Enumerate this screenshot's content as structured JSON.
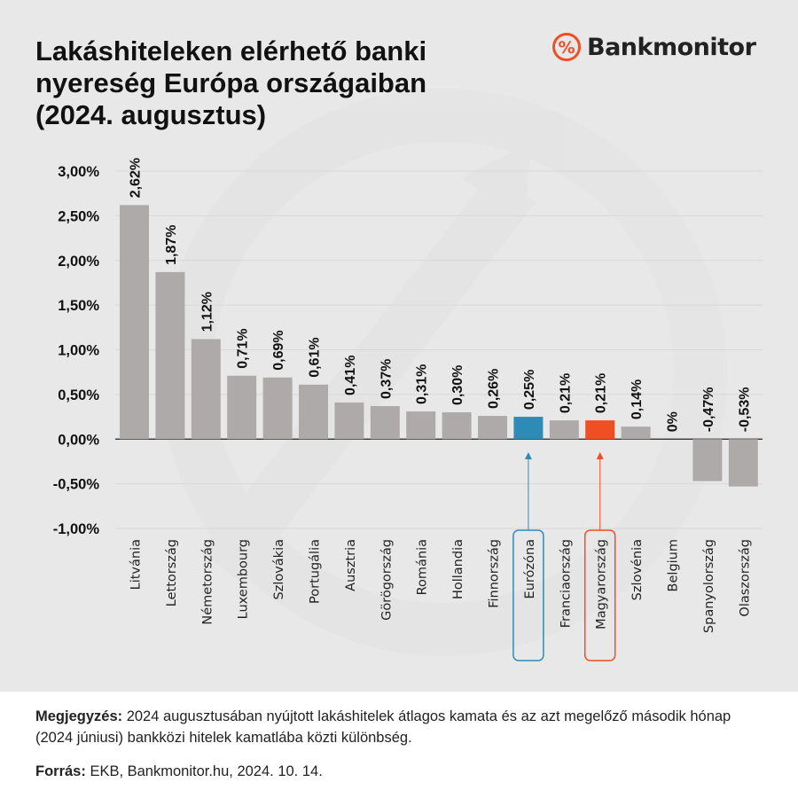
{
  "title": "Lakáshiteleken elérhető banki\nnyereség Európa országaiban\n(2024. augusztus)",
  "logo": {
    "text": "Bankmonitor",
    "icon": "percent-circle-icon",
    "color": "#f04e23"
  },
  "colors": {
    "bar": "#aeaaaa",
    "eurozone": "#2e8bb5",
    "hungary": "#f04e23",
    "background": "#e9e8e8"
  },
  "chart_data": {
    "type": "bar",
    "title": "Lakáshiteleken elérhető banki nyereség Európa országaiban (2024. augusztus)",
    "categories": [
      "Litvánia",
      "Lettország",
      "Németország",
      "Luxembourg",
      "Szlovákia",
      "Portugália",
      "Ausztria",
      "Görögország",
      "Románia",
      "Hollandia",
      "Finnország",
      "Eurózóna",
      "Franciaország",
      "Magyarország",
      "Szlovénia",
      "Belgium",
      "Spanyolország",
      "Olaszország"
    ],
    "values": [
      2.62,
      1.87,
      1.12,
      0.71,
      0.69,
      0.61,
      0.41,
      0.37,
      0.31,
      0.3,
      0.26,
      0.25,
      0.21,
      0.21,
      0.14,
      0,
      -0.47,
      -0.53
    ],
    "data_labels": [
      "2,62%",
      "1,87%",
      "1,12%",
      "0,71%",
      "0,69%",
      "0,61%",
      "0,41%",
      "0,37%",
      "0,31%",
      "0,30%",
      "0,26%",
      "0,25%",
      "0,21%",
      "0,21%",
      "0,14%",
      "0%",
      "-0,47%",
      "-0,53%"
    ],
    "highlighted": {
      "Eurózóna": "#2e8bb5",
      "Magyarország": "#f04e23"
    },
    "ylim": [
      -1.0,
      3.0
    ],
    "yticks": [
      3.0,
      2.5,
      2.0,
      1.5,
      1.0,
      0.5,
      0.0,
      -0.5,
      -1.0
    ],
    "ytick_labels": [
      "3,00%",
      "2,50%",
      "2,00%",
      "1,50%",
      "1,00%",
      "0,50%",
      "0,00%",
      "-0,50%",
      "-1,00%"
    ],
    "grid": true,
    "xlabel": "",
    "ylabel": ""
  },
  "footer": {
    "note_label": "Megjegyzés:",
    "note_text": " 2024 augusztusában nyújtott lakáshitelek átlagos kamata és az azt megelőző második hónap (2024 júniusi) bankközi hitelek kamatlába közti különbség.",
    "source_label": "Forrás:",
    "source_text": " EKB, Bankmonitor.hu, 2024. 10. 14."
  }
}
